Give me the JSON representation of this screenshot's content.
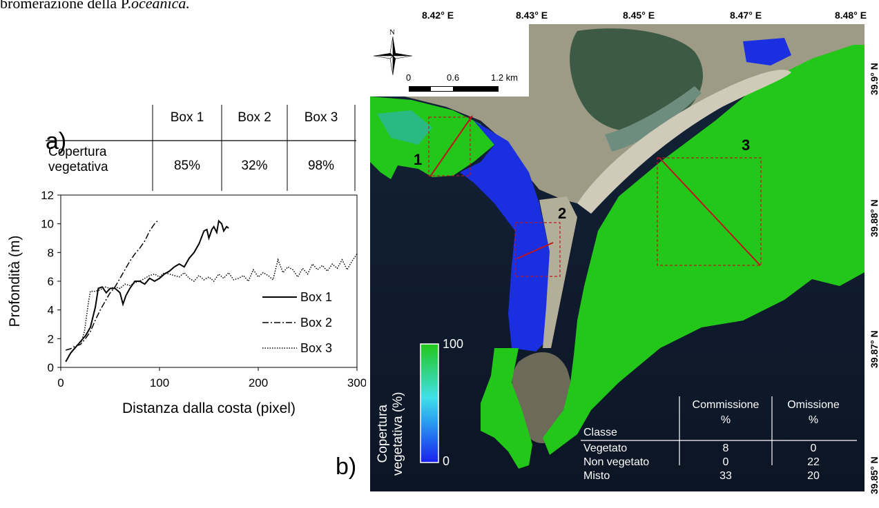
{
  "caption": {
    "text": "bromerazione della P.",
    "italic": "oceanica."
  },
  "panel_a": {
    "label": "a)",
    "table": {
      "columns": [
        "Box 1",
        "Box 2",
        "Box 3"
      ],
      "row_label_line1": "Copertura",
      "row_label_line2": "vegetativa",
      "values": [
        "85%",
        "32%",
        "98%"
      ]
    }
  },
  "chart_data": {
    "type": "line",
    "xlabel": "Distanza dalla costa (pixel)",
    "ylabel": "Profondità (m)",
    "xlim": [
      0,
      300
    ],
    "ylim": [
      0,
      12
    ],
    "x_ticks": [
      0,
      100,
      200,
      300
    ],
    "y_ticks": [
      0,
      2,
      4,
      6,
      8,
      10,
      12
    ],
    "legend_placement": "bottom-right",
    "series": [
      {
        "name": "Box 1",
        "style": "solid",
        "x": [
          5,
          10,
          15,
          20,
          25,
          30,
          35,
          38,
          42,
          46,
          50,
          55,
          60,
          63,
          66,
          70,
          75,
          80,
          85,
          90,
          95,
          100,
          105,
          110,
          115,
          120,
          125,
          130,
          135,
          140,
          145,
          148,
          150,
          153,
          155,
          158,
          160,
          163,
          165,
          168,
          170
        ],
        "y": [
          0.4,
          1.0,
          1.4,
          1.8,
          2.2,
          2.8,
          4.2,
          5.5,
          5.6,
          5.2,
          5.5,
          5.5,
          5.2,
          4.4,
          5.0,
          5.5,
          6.0,
          6.0,
          5.8,
          6.2,
          6.0,
          6.2,
          6.5,
          6.7,
          7.0,
          7.2,
          7.0,
          7.6,
          8.0,
          8.6,
          9.5,
          9.6,
          9.0,
          9.6,
          9.8,
          9.4,
          10.2,
          10.0,
          9.5,
          9.8,
          9.7
        ]
      },
      {
        "name": "Box 2",
        "style": "dashdot",
        "x": [
          5,
          10,
          15,
          20,
          25,
          30,
          35,
          40,
          45,
          50,
          55,
          60,
          65,
          70,
          75,
          80,
          85,
          90,
          95,
          98
        ],
        "y": [
          1.2,
          1.3,
          1.5,
          1.6,
          2.0,
          2.5,
          3.3,
          4.0,
          4.6,
          5.2,
          5.6,
          6.2,
          6.8,
          7.4,
          7.9,
          8.3,
          8.8,
          9.5,
          10.0,
          10.2
        ]
      },
      {
        "name": "Box 3",
        "style": "dotted",
        "x": [
          8,
          12,
          16,
          20,
          24,
          28,
          30,
          35,
          40,
          45,
          50,
          55,
          60,
          65,
          70,
          75,
          80,
          85,
          90,
          95,
          100,
          105,
          110,
          115,
          120,
          125,
          130,
          135,
          140,
          145,
          150,
          155,
          160,
          165,
          170,
          175,
          180,
          185,
          190,
          195,
          200,
          205,
          210,
          215,
          220,
          225,
          230,
          235,
          240,
          245,
          250,
          255,
          260,
          265,
          270,
          275,
          280,
          285,
          290,
          295,
          300
        ],
        "y": [
          0.8,
          1.2,
          1.5,
          1.6,
          2.5,
          4.5,
          5.3,
          5.3,
          5.4,
          5.6,
          5.5,
          5.6,
          5.5,
          5.8,
          5.7,
          5.9,
          6.0,
          6.2,
          6.4,
          6.5,
          6.3,
          6.6,
          6.5,
          6.4,
          6.3,
          6.6,
          6.2,
          6.0,
          6.4,
          6.1,
          6.3,
          6.0,
          6.5,
          6.2,
          6.6,
          6.1,
          6.2,
          6.4,
          6.0,
          6.8,
          6.3,
          6.6,
          6.4,
          6.1,
          7.5,
          6.6,
          7.0,
          6.8,
          6.3,
          6.9,
          6.5,
          7.2,
          6.8,
          7.1,
          6.7,
          7.2,
          6.9,
          7.5,
          6.8,
          7.4,
          7.9
        ]
      }
    ]
  },
  "panel_b": {
    "label": "b)",
    "lon_ticks": [
      "8.42° E",
      "8.43° E",
      "8.45° E",
      "8.47° E",
      "8.48° E"
    ],
    "lat_ticks": [
      "39.9° N",
      "39.88° N",
      "39.87° N",
      "39.85° N"
    ],
    "north_label": "N",
    "scale_labels": [
      "0",
      "0.6",
      "1.2 km"
    ],
    "box_numbers": [
      "1",
      "2",
      "3"
    ],
    "legend": {
      "title_line1": "Copertura",
      "title_line2": "vegetativa (%)",
      "max": "100",
      "min": "0"
    },
    "accuracy_table": {
      "header": [
        "Classe",
        "Commissione",
        "%",
        "Omissione",
        "%"
      ],
      "rows": [
        {
          "classe": "Vegetato",
          "commissione": "8",
          "omissione": "0"
        },
        {
          "classe": "Non vegetato",
          "commissione": "0",
          "omissione": "22"
        },
        {
          "classe": "Misto",
          "commissione": "33",
          "omissione": "20"
        }
      ]
    },
    "colors": {
      "sea": "#0f1a2c",
      "seagrass": "#22c71a",
      "low_cover": "#1a2fe0",
      "land": "#9d9a86",
      "lagoon": "#3c5a44",
      "transect": "#c0141e"
    }
  }
}
